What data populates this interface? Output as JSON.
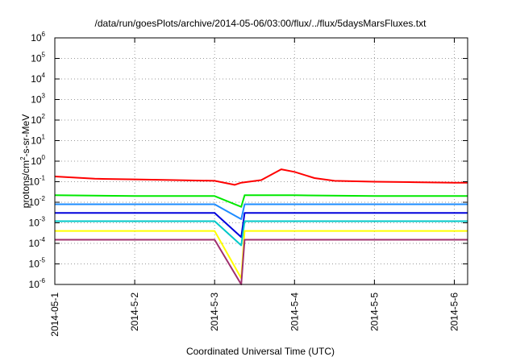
{
  "chart_data": {
    "type": "line",
    "title": "/data/run/goesPlots/archive/2014-05-06/03:00/flux/../flux/5daysMarsFluxes.txt",
    "xlabel": "Coordinated Universal Time (UTC)",
    "ylabel": {
      "text": "protons/cm",
      "superscript": "2",
      "suffix": "-s-sr-MeV"
    },
    "yscale": "log",
    "ylim": [
      1e-06,
      1000000.0
    ],
    "xlim": [
      "2014-05-01",
      "2014-05-06T04:00"
    ],
    "grid": true,
    "legend": "none",
    "x_ticks": [
      "2014-05-1",
      "2014-5-2",
      "2014-5-3",
      "2014-5-4",
      "2014-5-5",
      "2014-5-6"
    ],
    "y_ticks": [
      {
        "base": "10",
        "exp": "-6"
      },
      {
        "base": "10",
        "exp": "-5"
      },
      {
        "base": "10",
        "exp": "-4"
      },
      {
        "base": "10",
        "exp": "-3"
      },
      {
        "base": "10",
        "exp": "-2"
      },
      {
        "base": "10",
        "exp": "-1"
      },
      {
        "base": "10",
        "exp": "0"
      },
      {
        "base": "10",
        "exp": "1"
      },
      {
        "base": "10",
        "exp": "2"
      },
      {
        "base": "10",
        "exp": "3"
      },
      {
        "base": "10",
        "exp": "4"
      },
      {
        "base": "10",
        "exp": "5"
      },
      {
        "base": "10",
        "exp": "6"
      }
    ],
    "series": [
      {
        "color": "#ff0000",
        "points": [
          [
            "2014-05-01T00:00",
            0.18
          ],
          [
            "2014-05-01T12:00",
            0.14
          ],
          [
            "2014-05-02T00:00",
            0.13
          ],
          [
            "2014-05-02T12:00",
            0.12
          ],
          [
            "2014-05-03T00:00",
            0.11
          ],
          [
            "2014-05-03T06:00",
            0.07
          ],
          [
            "2014-05-03T08:00",
            0.09
          ],
          [
            "2014-05-03T14:00",
            0.12
          ],
          [
            "2014-05-03T20:00",
            0.4
          ],
          [
            "2014-05-04T00:00",
            0.3
          ],
          [
            "2014-05-04T06:00",
            0.15
          ],
          [
            "2014-05-04T12:00",
            0.11
          ],
          [
            "2014-05-05T00:00",
            0.1
          ],
          [
            "2014-05-05T12:00",
            0.095
          ],
          [
            "2014-05-06T00:00",
            0.09
          ],
          [
            "2014-05-06T04:00",
            0.09
          ]
        ]
      },
      {
        "color": "#00e800",
        "points": [
          [
            "2014-05-01T00:00",
            0.022
          ],
          [
            "2014-05-02T00:00",
            0.02
          ],
          [
            "2014-05-03T00:00",
            0.02
          ],
          [
            "2014-05-03T08:00",
            0.006
          ],
          [
            "2014-05-03T09:00",
            0.022
          ],
          [
            "2014-05-04T00:00",
            0.022
          ],
          [
            "2014-05-05T00:00",
            0.02
          ],
          [
            "2014-05-06T04:00",
            0.02
          ]
        ]
      },
      {
        "color": "#1e8cff",
        "points": [
          [
            "2014-05-01T00:00",
            0.008
          ],
          [
            "2014-05-02T00:00",
            0.008
          ],
          [
            "2014-05-03T00:00",
            0.008
          ],
          [
            "2014-05-03T08:00",
            0.0015
          ],
          [
            "2014-05-03T09:00",
            0.008
          ],
          [
            "2014-05-04T00:00",
            0.008
          ],
          [
            "2014-05-05T00:00",
            0.008
          ],
          [
            "2014-05-06T04:00",
            0.008
          ]
        ]
      },
      {
        "color": "#0000dc",
        "points": [
          [
            "2014-05-01T00:00",
            0.003
          ],
          [
            "2014-05-02T00:00",
            0.003
          ],
          [
            "2014-05-03T00:00",
            0.003
          ],
          [
            "2014-05-03T08:00",
            0.0002
          ],
          [
            "2014-05-03T09:00",
            0.003
          ],
          [
            "2014-05-04T00:00",
            0.003
          ],
          [
            "2014-05-05T00:00",
            0.003
          ],
          [
            "2014-05-06T04:00",
            0.003
          ]
        ]
      },
      {
        "color": "#00c8c8",
        "points": [
          [
            "2014-05-01T00:00",
            0.0012
          ],
          [
            "2014-05-02T00:00",
            0.0012
          ],
          [
            "2014-05-03T00:00",
            0.0012
          ],
          [
            "2014-05-03T08:00",
            8e-05
          ],
          [
            "2014-05-03T09:00",
            0.0012
          ],
          [
            "2014-05-04T00:00",
            0.0012
          ],
          [
            "2014-05-05T00:00",
            0.0012
          ],
          [
            "2014-05-06T04:00",
            0.0012
          ]
        ]
      },
      {
        "color": "#ffff00",
        "points": [
          [
            "2014-05-01T00:00",
            0.0004
          ],
          [
            "2014-05-02T00:00",
            0.0004
          ],
          [
            "2014-05-03T00:00",
            0.0004
          ],
          [
            "2014-05-03T08:00",
            2e-06
          ],
          [
            "2014-05-03T09:00",
            0.0004
          ],
          [
            "2014-05-04T00:00",
            0.0004
          ],
          [
            "2014-05-05T00:00",
            0.0004
          ],
          [
            "2014-05-06T04:00",
            0.0004
          ]
        ]
      },
      {
        "color": "#a0306e",
        "points": [
          [
            "2014-05-01T00:00",
            0.00015
          ],
          [
            "2014-05-02T00:00",
            0.00015
          ],
          [
            "2014-05-03T00:00",
            0.00015
          ],
          [
            "2014-05-03T08:00",
            1e-06
          ],
          [
            "2014-05-03T09:00",
            0.00015
          ],
          [
            "2014-05-04T00:00",
            0.00015
          ],
          [
            "2014-05-05T00:00",
            0.00015
          ],
          [
            "2014-05-06T04:00",
            0.00015
          ]
        ]
      }
    ]
  }
}
